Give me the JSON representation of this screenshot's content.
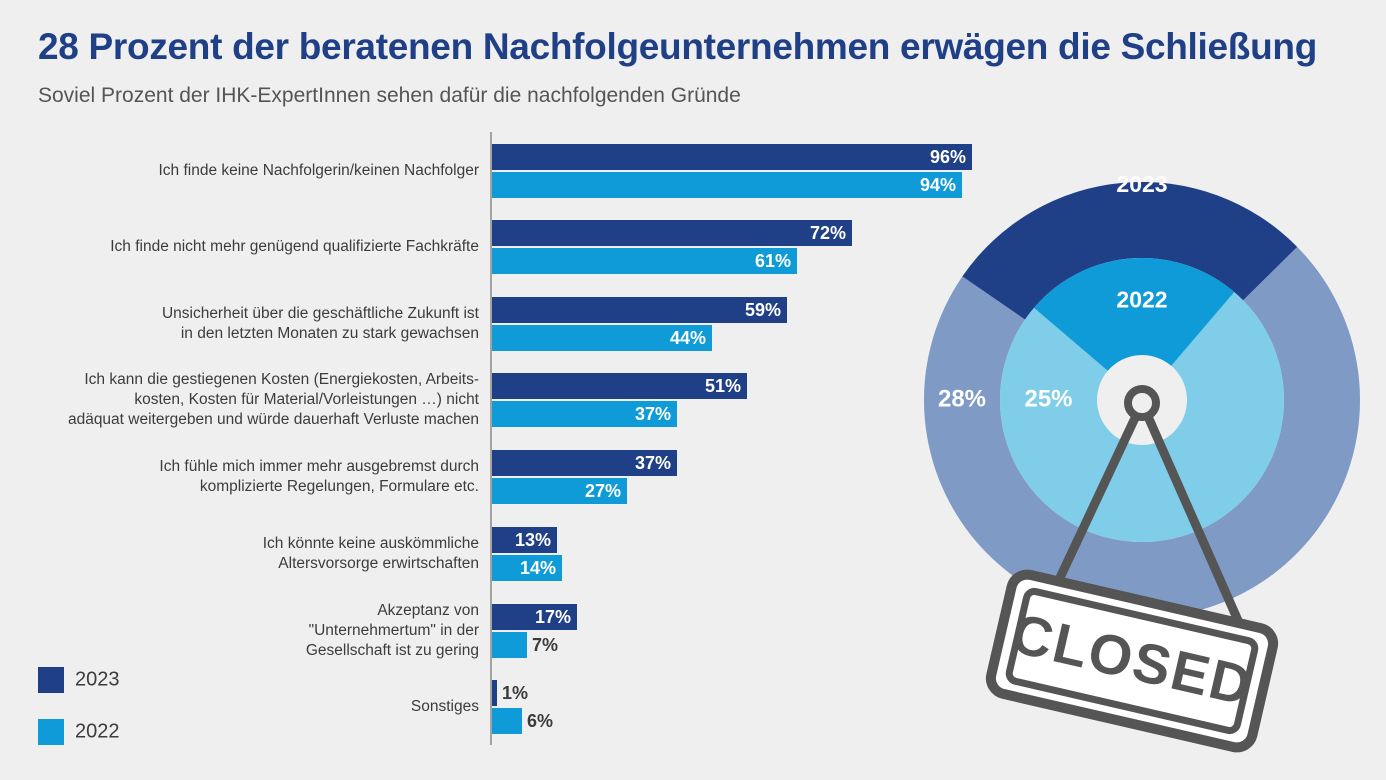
{
  "chart_data": {
    "type": "bar",
    "orientation": "horizontal",
    "title": "28 Prozent der beratenen Nachfolgeunternehmen erwägen die Schließung",
    "subtitle": "Soviel Prozent der IHK-ExpertInnen sehen dafür die nachfolgenden Gründe",
    "categories": [
      [
        "Ich finde keine Nachfolgerin/keinen Nachfolger"
      ],
      [
        "Ich finde nicht mehr genügend qualifizierte Fachkräfte"
      ],
      [
        "Unsicherheit über die geschäftliche Zukunft ist",
        "in den letzten Monaten zu stark gewachsen"
      ],
      [
        "Ich kann die gestiegenen Kosten (Energiekosten, Arbeits-",
        "kosten, Kosten für Material/Vorleistungen …) nicht",
        "adäquat weitergeben und würde dauerhaft Verluste machen"
      ],
      [
        "Ich fühle mich immer mehr ausgebremst durch",
        "komplizierte Regelungen, Formulare etc."
      ],
      [
        "Ich könnte keine auskömmliche",
        "Altersvorsorge erwirtschaften"
      ],
      [
        "Akzeptanz von",
        "\"Unternehmertum\" in der",
        "Gesellschaft ist zu gering"
      ],
      [
        "Sonstiges"
      ]
    ],
    "series": [
      {
        "name": "2023",
        "color": "#1f3f86",
        "values": [
          96,
          72,
          59,
          51,
          37,
          13,
          17,
          1
        ],
        "labels": [
          "96%",
          "72%",
          "59%",
          "51%",
          "37%",
          "13%",
          "17%",
          "1%"
        ]
      },
      {
        "name": "2022",
        "color": "#0f9bd7",
        "values": [
          94,
          61,
          44,
          37,
          27,
          14,
          7,
          6
        ],
        "labels": [
          "94%",
          "61%",
          "44%",
          "37%",
          "27%",
          "14%",
          "7%",
          "6%"
        ]
      }
    ],
    "xlim": [
      0,
      100
    ],
    "legend": [
      {
        "label": "2023",
        "color": "#1f3f86"
      },
      {
        "label": "2022",
        "color": "#0f9bd7"
      }
    ],
    "legend_position": "bottom-left",
    "rings": [
      {
        "year": "2023",
        "value": 28,
        "label": "28%",
        "color": "#1f3f86",
        "rest_color": "#7f9ac4"
      },
      {
        "year": "2022",
        "value": 25,
        "label": "25%",
        "color": "#0f9bd7",
        "rest_color": "#7fcde9"
      }
    ],
    "sign_text": "CLOSED"
  }
}
